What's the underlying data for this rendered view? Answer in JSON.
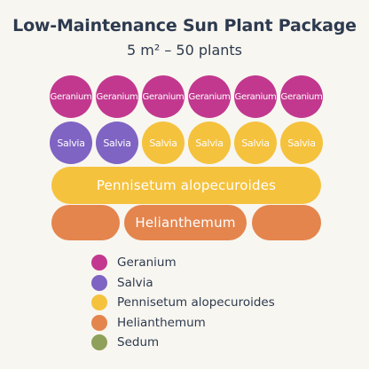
{
  "title": "Low-Maintenance Sun Plant Package",
  "subtitle": "5 m² – 50 plants",
  "colors": {
    "geranium": "#c2388f",
    "salvia": "#7f64c4",
    "pennisetum": "#f5c23e",
    "helianthemum": "#e4854e",
    "sedum": "#8ea05a"
  },
  "plan": {
    "row1": [
      "Geranium",
      "Geranium",
      "Geranium",
      "Geranium",
      "Geranium",
      "Geranium"
    ],
    "row2": [
      "Salvia",
      "Salvia",
      "Salvia",
      "Salvia",
      "Salvia",
      "Salvia"
    ],
    "row2_colors": [
      "salvia",
      "salvia",
      "pennisetum",
      "pennisetum",
      "pennisetum",
      "pennisetum"
    ],
    "pennisetum_bar": "Pennisetum alopecuroides",
    "helianthemum_bar": "Helianthemum"
  },
  "legend": [
    {
      "label": "Geranium",
      "color_key": "geranium"
    },
    {
      "label": "Salvia",
      "color_key": "salvia"
    },
    {
      "label": "Pennisetum alopecuroides",
      "color_key": "pennisetum"
    },
    {
      "label": "Helianthemum",
      "color_key": "helianthemum"
    },
    {
      "label": "Sedum",
      "color_key": "sedum"
    }
  ]
}
